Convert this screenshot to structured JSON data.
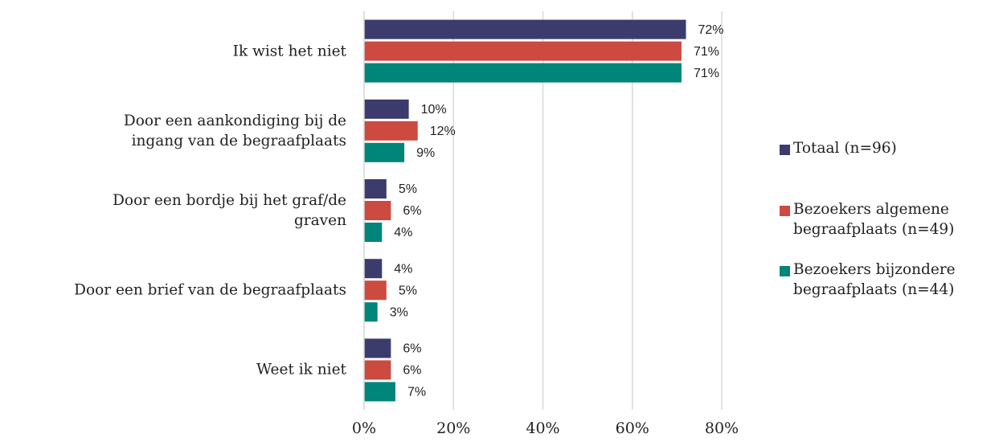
{
  "chart_data": {
    "type": "bar",
    "orientation": "horizontal",
    "categories": [
      "Ik wist het niet",
      "Door een aankondiging bij de\ningang van de begraafplaats",
      "Door een bordje bij het graf/de\ngraven",
      "Door een brief van de begraafplaats",
      "Weet ik niet"
    ],
    "series": [
      {
        "name": "Totaal (n=96)",
        "color": "#3b3c6b",
        "values": [
          72,
          10,
          5,
          4,
          6
        ],
        "value_labels": [
          "72%",
          "10%",
          "5%",
          "4%",
          "6%"
        ]
      },
      {
        "name": "Bezoekers algemene\nbegraafplaats (n=49)",
        "color": "#cc4a3f",
        "values": [
          71,
          12,
          6,
          5,
          6
        ],
        "value_labels": [
          "71%",
          "12%",
          "6%",
          "5%",
          "6%"
        ]
      },
      {
        "name": "Bezoekers bijzondere\nbegraafplaats (n=44)",
        "color": "#00857a",
        "values": [
          71,
          9,
          4,
          3,
          7
        ],
        "value_labels": [
          "71%",
          "9%",
          "4%",
          "3%",
          "7%"
        ]
      }
    ],
    "xlim": [
      0,
      80
    ],
    "xticks": [
      {
        "value": 0,
        "label": "0%"
      },
      {
        "value": 20,
        "label": "20%"
      },
      {
        "value": 40,
        "label": "40%"
      },
      {
        "value": 60,
        "label": "60%"
      },
      {
        "value": 80,
        "label": "80%"
      }
    ],
    "grid": true,
    "legend": "right"
  }
}
